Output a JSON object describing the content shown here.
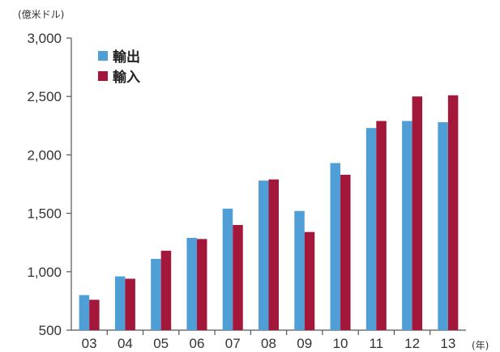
{
  "chart_data": {
    "type": "bar",
    "y_unit_label": "(億米ドル)",
    "x_unit_label": "(年)",
    "categories": [
      "03",
      "04",
      "05",
      "06",
      "07",
      "08",
      "09",
      "10",
      "11",
      "12",
      "13"
    ],
    "ylim": [
      500,
      3000
    ],
    "yticks": [
      500,
      1000,
      1500,
      2000,
      2500,
      3000
    ],
    "ytick_labels": [
      "500",
      "1,000",
      "1,500",
      "2,000",
      "2,500",
      "3,000"
    ],
    "grid": false,
    "legend_position": "top-left",
    "series": [
      {
        "name": "輸出",
        "color": "#4f9fd6",
        "values": [
          800,
          960,
          1110,
          1290,
          1540,
          1780,
          1520,
          1930,
          2230,
          2290,
          2280
        ]
      },
      {
        "name": "輸入",
        "color": "#a3183a",
        "values": [
          760,
          940,
          1180,
          1280,
          1400,
          1790,
          1340,
          1830,
          2290,
          2500,
          2510
        ]
      }
    ]
  }
}
